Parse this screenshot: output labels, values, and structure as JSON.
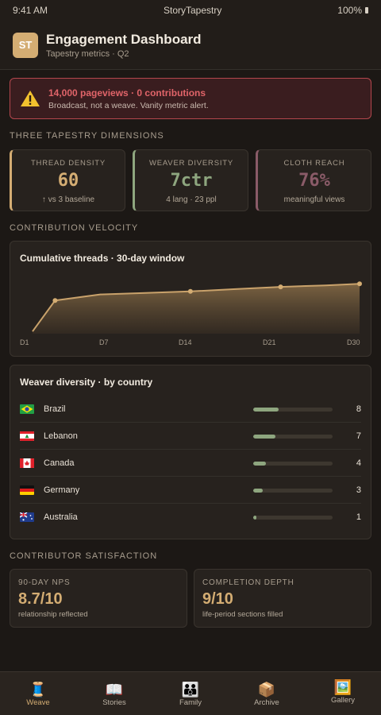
{
  "status": {
    "time": "9:41 AM",
    "app": "StoryTapestry",
    "battery": "100%"
  },
  "header": {
    "avatar": "ST",
    "title": "Engagement Dashboard",
    "subtitle": "Tapestry metrics · Q2"
  },
  "alert": {
    "icon": "warning-icon",
    "title": "14,000 pageviews · 0 contributions",
    "subtitle": "Broadcast, not a weave. Vanity metric alert."
  },
  "dimensions": {
    "section_title": "THREE TAPESTRY DIMENSIONS",
    "cards": [
      {
        "label": "THREAD DENSITY",
        "value": "60",
        "foot": "↑ vs 3 baseline",
        "color": "#d4ad73"
      },
      {
        "label": "WEAVER DIVERSITY",
        "value": "7ctr",
        "foot": "4 lang · 23 ppl",
        "color": "#8ea67f"
      },
      {
        "label": "CLOTH REACH",
        "value": "76%",
        "foot": "meaningful views",
        "color": "#8a5b68"
      }
    ]
  },
  "velocity": {
    "section_title": "CONTRIBUTION VELOCITY",
    "chart_title": "Cumulative threads · 30-day window"
  },
  "chart_data": {
    "type": "area",
    "title": "Cumulative threads · 30-day window",
    "x_tick_labels": [
      "D1",
      "D7",
      "D14",
      "D21",
      "D30"
    ],
    "x": [
      1,
      3,
      7,
      11,
      15,
      19,
      23,
      27,
      30
    ],
    "values": [
      3,
      44,
      52,
      54,
      56,
      59,
      62,
      64,
      66
    ],
    "marker_indices": [
      1,
      4,
      6,
      8
    ],
    "ylim": [
      0,
      80
    ],
    "xlim": [
      1,
      30
    ],
    "grid": false,
    "legend": "none",
    "line_color": "#c9a26b"
  },
  "diversity": {
    "title": "Weaver diversity · by country",
    "max": 30,
    "countries": [
      {
        "name": "Brazil",
        "count": "8",
        "fraction": 0.32,
        "flag": "brazil-flag-icon"
      },
      {
        "name": "Lebanon",
        "count": "7",
        "fraction": 0.28,
        "flag": "lebanon-flag-icon"
      },
      {
        "name": "Canada",
        "count": "4",
        "fraction": 0.16,
        "flag": "canada-flag-icon"
      },
      {
        "name": "Germany",
        "count": "3",
        "fraction": 0.12,
        "flag": "germany-flag-icon"
      },
      {
        "name": "Australia",
        "count": "1",
        "fraction": 0.04,
        "flag": "australia-flag-icon"
      }
    ]
  },
  "satisfaction": {
    "section_title": "CONTRIBUTOR SATISFACTION",
    "cards": [
      {
        "label": "90-DAY NPS",
        "value": "8.7/10",
        "foot": "relationship reflected"
      },
      {
        "label": "COMPLETION DEPTH",
        "value": "9/10",
        "foot": "life-period sections filled"
      }
    ]
  },
  "tabs": [
    {
      "label": "Weave",
      "icon": "🧵",
      "active": true
    },
    {
      "label": "Stories",
      "icon": "📖",
      "active": false
    },
    {
      "label": "Family",
      "icon": "👪",
      "active": false
    },
    {
      "label": "Archive",
      "icon": "📦",
      "active": false
    },
    {
      "label": "Gallery",
      "icon": "🖼️",
      "active": false
    }
  ]
}
